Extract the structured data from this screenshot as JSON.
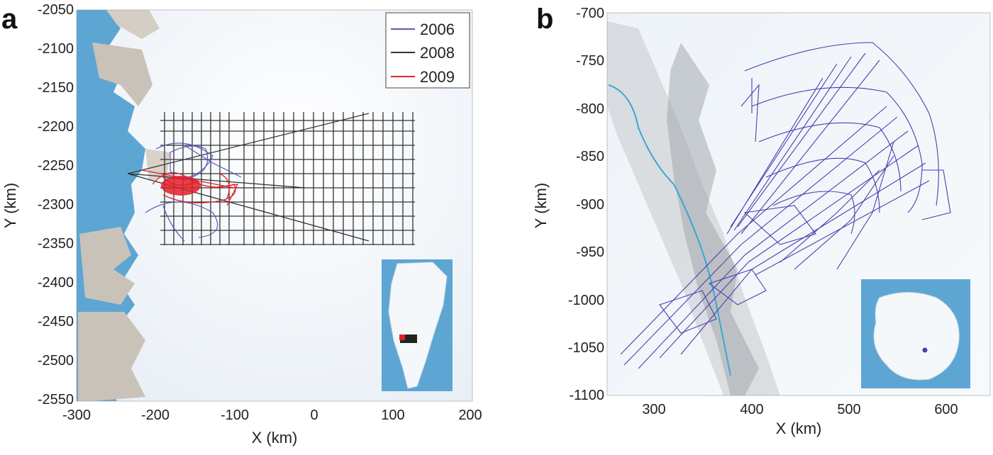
{
  "panels": {
    "a": {
      "letter": "a",
      "xlabel": "X (km)",
      "ylabel": "Y (km)",
      "xticks": [
        "-300",
        "-200",
        "-100",
        "0",
        "100",
        "200"
      ],
      "yticks": [
        "-2050",
        "-2100",
        "-2150",
        "-2200",
        "-2250",
        "-2300",
        "-2350",
        "-2400",
        "-2450",
        "-2500",
        "-2550"
      ],
      "legend": [
        {
          "label": "2006",
          "color": "#5a5ab4"
        },
        {
          "label": "2008",
          "color": "#333333"
        },
        {
          "label": "2009",
          "color": "#e0202a"
        }
      ],
      "inset": "greenland-map"
    },
    "b": {
      "letter": "b",
      "xlabel": "X (km)",
      "ylabel": "Y (km)",
      "xticks": [
        "300",
        "400",
        "500",
        "600"
      ],
      "yticks": [
        "-700",
        "-750",
        "-800",
        "-850",
        "-900",
        "-950",
        "-1000",
        "-1050",
        "-1100"
      ],
      "track_color": "#4a3fb0",
      "inset": "antarctica-map"
    }
  },
  "colors": {
    "ocean": "#5da6d4",
    "land": "#c9c2b8",
    "ice": "#f2f6fa"
  }
}
